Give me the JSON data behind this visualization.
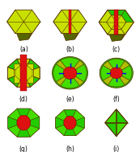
{
  "labels": [
    "(a)",
    "(b)",
    "(c)",
    "(d)",
    "(e)",
    "(f)",
    "(g)",
    "(h)",
    "(i)"
  ],
  "background_color": "#ffffff",
  "label_fontsize": 5.5,
  "colors": {
    "yg": "#c8e000",
    "yg_dark": "#9aaa00",
    "yg_mid": "#b0be00",
    "green_bright": "#44dd00",
    "green": "#22cc00",
    "green_dark": "#119900",
    "red": "#dd1111",
    "red_dark": "#880000",
    "blue": "#0000ee",
    "edge": "#553300",
    "dark_side": "#556600"
  }
}
